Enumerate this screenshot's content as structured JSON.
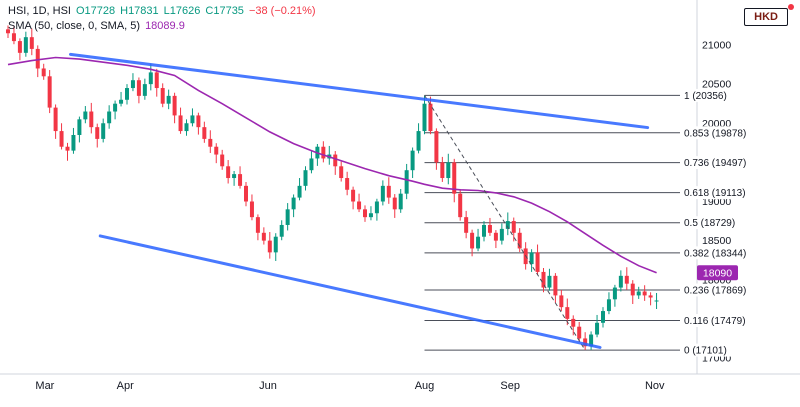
{
  "legend": {
    "symbol_line": {
      "title": "HSI, 1D, HSI",
      "open": "O17728",
      "high": "H17831",
      "low": "L17626",
      "close": "C17735",
      "change": "−38 (−0.21%)"
    },
    "sma_line": {
      "label": "SMA (50, close, 0, SMA, 5)",
      "value": "18089.9"
    }
  },
  "currency_button": {
    "label": "HKD"
  },
  "colors": {
    "up": "#089981",
    "down": "#F23645",
    "sma": "#9C27B0",
    "trend": "#2962FF",
    "axis_text": "#131722",
    "axis_line": "#d1d4dc",
    "fib": "#4a4e59"
  },
  "chart_data": {
    "type": "candlestick",
    "symbol": "HSI",
    "interval": "1D",
    "currency": "HKD",
    "ylim": [
      17000,
      21450
    ],
    "grid": false,
    "price_ticks": [
      21000,
      20500,
      20000,
      19500,
      19000,
      18500,
      18000,
      17500,
      17000
    ],
    "time_ticks": [
      {
        "label": "Mar",
        "bar": 6.2
      },
      {
        "label": "Apr",
        "bar": 19.7
      },
      {
        "label": "Jun",
        "bar": 43.7
      },
      {
        "label": "Aug",
        "bar": 70
      },
      {
        "label": "Sep",
        "bar": 84.4
      },
      {
        "label": "Nov",
        "bar": 108.7
      }
    ],
    "badge_price": 18090,
    "last_sma_label": "18090",
    "fib_start_bar": 70,
    "fib_levels": [
      {
        "label": "1 (20356)",
        "price": 20356
      },
      {
        "label": "0.853 (19878)",
        "price": 19878
      },
      {
        "label": "0.736 (19497)",
        "price": 19497
      },
      {
        "label": "0.618 (19113)",
        "price": 19113
      },
      {
        "label": "0.5 (18729)",
        "price": 18729
      },
      {
        "label": "0.382 (18344)",
        "price": 18344
      },
      {
        "label": "0.236 (17869)",
        "price": 17869
      },
      {
        "label": "0.116 (17479)",
        "price": 17479
      },
      {
        "label": "0 (17101)",
        "price": 17101
      }
    ],
    "fib_dashed": {
      "from": [
        70,
        20356
      ],
      "to": [
        97,
        17101
      ]
    },
    "trendlines": [
      {
        "from": [
          10.5,
          20880
        ],
        "to": [
          107.5,
          19945
        ]
      },
      {
        "from": [
          15.5,
          18560
        ],
        "to": [
          99.5,
          17135
        ]
      }
    ],
    "sma_points": [
      [
        0,
        20750
      ],
      [
        4,
        20800
      ],
      [
        8,
        20840
      ],
      [
        12,
        20820
      ],
      [
        16,
        20780
      ],
      [
        20,
        20740
      ],
      [
        24,
        20690
      ],
      [
        28,
        20610
      ],
      [
        32,
        20420
      ],
      [
        36,
        20250
      ],
      [
        40,
        20070
      ],
      [
        44,
        19890
      ],
      [
        48,
        19740
      ],
      [
        52,
        19620
      ],
      [
        56,
        19520
      ],
      [
        60,
        19420
      ],
      [
        64,
        19330
      ],
      [
        68,
        19260
      ],
      [
        70,
        19220
      ],
      [
        73,
        19170
      ],
      [
        76,
        19150
      ],
      [
        79,
        19140
      ],
      [
        82,
        19110
      ],
      [
        85,
        19060
      ],
      [
        88,
        18980
      ],
      [
        91,
        18870
      ],
      [
        94,
        18740
      ],
      [
        97,
        18590
      ],
      [
        100,
        18440
      ],
      [
        103,
        18300
      ],
      [
        106,
        18180
      ],
      [
        109,
        18090
      ]
    ],
    "candles": [
      [
        21200,
        21250,
        21090,
        21150
      ],
      [
        21150,
        21240,
        21010,
        21050
      ],
      [
        21050,
        21085,
        20805,
        20900
      ],
      [
        20900,
        21170,
        20850,
        21100
      ],
      [
        21100,
        21210,
        20870,
        20950
      ],
      [
        20950,
        20995,
        20590,
        20700
      ],
      [
        20700,
        20760,
        20555,
        20600
      ],
      [
        20600,
        20680,
        20130,
        20200
      ],
      [
        20200,
        20240,
        19800,
        19900
      ],
      [
        19900,
        20000,
        19665,
        19700
      ],
      [
        19700,
        19750,
        19520,
        19650
      ],
      [
        19650,
        19940,
        19610,
        19850
      ],
      [
        19850,
        20085,
        19755,
        20050
      ],
      [
        20050,
        20220,
        20000,
        20150
      ],
      [
        20150,
        20260,
        19870,
        19950
      ],
      [
        19950,
        19995,
        19690,
        19800
      ],
      [
        19800,
        20060,
        19755,
        20000
      ],
      [
        20000,
        20230,
        19930,
        20150
      ],
      [
        20150,
        20290,
        20050,
        20250
      ],
      [
        20250,
        20400,
        20215,
        20300
      ],
      [
        20300,
        20500,
        20240,
        20450
      ],
      [
        20450,
        20640,
        20410,
        20550
      ],
      [
        20550,
        20585,
        20255,
        20350
      ],
      [
        20350,
        20570,
        20300,
        20500
      ],
      [
        20500,
        20760,
        20420,
        20650
      ],
      [
        20650,
        20695,
        20340,
        20450
      ],
      [
        20450,
        20510,
        20205,
        20250
      ],
      [
        20250,
        20430,
        20180,
        20350
      ],
      [
        20350,
        20390,
        20000,
        20100
      ],
      [
        20100,
        20200,
        19865,
        19900
      ],
      [
        19900,
        20050,
        19840,
        20000
      ],
      [
        20000,
        20190,
        19960,
        20100
      ],
      [
        20100,
        20135,
        19855,
        19950
      ],
      [
        19950,
        20020,
        19750,
        19800
      ],
      [
        19800,
        19910,
        19620,
        19700
      ],
      [
        19700,
        19745,
        19490,
        19600
      ],
      [
        19600,
        19660,
        19405,
        19450
      ],
      [
        19450,
        19530,
        19230,
        19300
      ],
      [
        19300,
        19390,
        19200,
        19350
      ],
      [
        19350,
        19450,
        19165,
        19200
      ],
      [
        19200,
        19250,
        18940,
        19000
      ],
      [
        19000,
        19090,
        18760,
        18800
      ],
      [
        18800,
        18835,
        18505,
        18600
      ],
      [
        18600,
        18670,
        18450,
        18500
      ],
      [
        18500,
        18610,
        18270,
        18350
      ],
      [
        18350,
        18595,
        18240,
        18550
      ],
      [
        18550,
        18760,
        18505,
        18700
      ],
      [
        18700,
        18980,
        18630,
        18900
      ],
      [
        18900,
        19090,
        18800,
        19050
      ],
      [
        19050,
        19300,
        19015,
        19200
      ],
      [
        19200,
        19450,
        19140,
        19400
      ],
      [
        19400,
        19640,
        19360,
        19550
      ],
      [
        19550,
        19735,
        19455,
        19700
      ],
      [
        19700,
        19770,
        19500,
        19550
      ],
      [
        19550,
        19710,
        19470,
        19600
      ],
      [
        19600,
        19645,
        19340,
        19450
      ],
      [
        19450,
        19510,
        19255,
        19300
      ],
      [
        19300,
        19380,
        19080,
        19150
      ],
      [
        19150,
        19190,
        18900,
        19000
      ],
      [
        19000,
        19100,
        18865,
        18900
      ],
      [
        18900,
        18950,
        18740,
        18800
      ],
      [
        18800,
        18940,
        18760,
        18850
      ],
      [
        18850,
        19035,
        18755,
        19000
      ],
      [
        19000,
        19270,
        18950,
        19200
      ],
      [
        19200,
        19310,
        18970,
        19050
      ],
      [
        19050,
        19095,
        18790,
        18900
      ],
      [
        18900,
        19160,
        18855,
        19100
      ],
      [
        19100,
        19480,
        19030,
        19400
      ],
      [
        19400,
        19690,
        19300,
        19650
      ],
      [
        19650,
        20000,
        19615,
        19900
      ],
      [
        19900,
        20356,
        19860,
        20250
      ],
      [
        20250,
        20340,
        19860,
        19900
      ],
      [
        19900,
        19935,
        19405,
        19500
      ],
      [
        19500,
        19570,
        19250,
        19300
      ],
      [
        19300,
        19610,
        19220,
        19500
      ],
      [
        19500,
        19545,
        18990,
        19100
      ],
      [
        19100,
        19160,
        18755,
        18800
      ],
      [
        18800,
        18880,
        18530,
        18600
      ],
      [
        18600,
        18640,
        18300,
        18400
      ],
      [
        18400,
        18650,
        18365,
        18550
      ],
      [
        18550,
        18750,
        18490,
        18700
      ],
      [
        18700,
        18790,
        18560,
        18600
      ],
      [
        18600,
        18635,
        18405,
        18500
      ],
      [
        18500,
        18720,
        18450,
        18650
      ],
      [
        18650,
        18860,
        18570,
        18750
      ],
      [
        18750,
        18795,
        18490,
        18600
      ],
      [
        18600,
        18660,
        18355,
        18400
      ],
      [
        18400,
        18480,
        18130,
        18200
      ],
      [
        18200,
        18390,
        18100,
        18350
      ],
      [
        18350,
        18450,
        18065,
        18100
      ],
      [
        18100,
        18150,
        17840,
        17900
      ],
      [
        17900,
        18140,
        17860,
        18050
      ],
      [
        18050,
        18085,
        17705,
        17800
      ],
      [
        17800,
        17870,
        17600,
        17650
      ],
      [
        17650,
        17760,
        17420,
        17500
      ],
      [
        17500,
        17545,
        17290,
        17400
      ],
      [
        17400,
        17460,
        17205,
        17250
      ],
      [
        17250,
        17330,
        17101,
        17150
      ],
      [
        17150,
        17340,
        17105,
        17300
      ],
      [
        17300,
        17550,
        17265,
        17450
      ],
      [
        17450,
        17650,
        17390,
        17600
      ],
      [
        17600,
        17840,
        17560,
        17750
      ],
      [
        17750,
        17935,
        17655,
        17900
      ],
      [
        17900,
        18120,
        17850,
        18050
      ],
      [
        18050,
        18160,
        17870,
        17950
      ],
      [
        17950,
        17995,
        17690,
        17800
      ],
      [
        17800,
        17910,
        17755,
        17850
      ],
      [
        17850,
        17930,
        17730,
        17800
      ],
      [
        17800,
        17840,
        17673,
        17773
      ],
      [
        17728,
        17831,
        17626,
        17735
      ]
    ]
  }
}
